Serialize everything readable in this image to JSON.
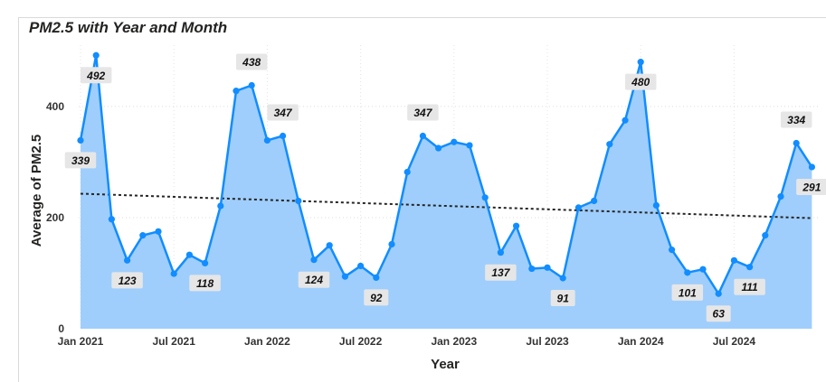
{
  "title": "PM2.5 with Year and Month",
  "chart_data": {
    "type": "area",
    "title": "PM2.5 with Year and Month",
    "xlabel": "Year",
    "ylabel": "Average of PM2.5",
    "x_start": "Jan 2021",
    "x_tick_labels": [
      "Jan 2021",
      "Jul 2021",
      "Jan 2022",
      "Jul 2022",
      "Jan 2023",
      "Jul 2023",
      "Jan 2024",
      "Jul 2024"
    ],
    "x_tick_month_index": [
      0,
      6,
      12,
      18,
      24,
      30,
      36,
      42
    ],
    "y_ticks": [
      0,
      200,
      400
    ],
    "ylim": [
      0,
      500
    ],
    "grid": true,
    "trendline": {
      "style": "dotted",
      "start": 243,
      "end": 199
    },
    "series": [
      {
        "values": [
          339,
          492,
          197,
          123,
          168,
          175,
          99,
          133,
          118,
          221,
          428,
          438,
          339,
          347,
          230,
          124,
          150,
          94,
          113,
          92,
          152,
          282,
          347,
          325,
          336,
          330,
          236,
          137,
          185,
          108,
          110,
          91,
          218,
          230,
          332,
          375,
          480,
          222,
          142,
          101,
          107,
          63,
          123,
          111,
          168,
          238,
          334,
          291
        ],
        "color": "#118dff",
        "fill": "#9fcefc"
      }
    ],
    "data_labels": [
      {
        "index": 0,
        "value": "339",
        "position": "below"
      },
      {
        "index": 1,
        "value": "492",
        "position": "below"
      },
      {
        "index": 3,
        "value": "123",
        "position": "below"
      },
      {
        "index": 8,
        "value": "118",
        "position": "below"
      },
      {
        "index": 11,
        "value": "438",
        "position": "above"
      },
      {
        "index": 13,
        "value": "347",
        "position": "above"
      },
      {
        "index": 15,
        "value": "124",
        "position": "below"
      },
      {
        "index": 19,
        "value": "92",
        "position": "below"
      },
      {
        "index": 22,
        "value": "347",
        "position": "above"
      },
      {
        "index": 27,
        "value": "137",
        "position": "below"
      },
      {
        "index": 31,
        "value": "91",
        "position": "below"
      },
      {
        "index": 36,
        "value": "480",
        "position": "below"
      },
      {
        "index": 39,
        "value": "101",
        "position": "below"
      },
      {
        "index": 41,
        "value": "63",
        "position": "below"
      },
      {
        "index": 43,
        "value": "111",
        "position": "below"
      },
      {
        "index": 46,
        "value": "334",
        "position": "above"
      },
      {
        "index": 47,
        "value": "291",
        "position": "below"
      }
    ]
  }
}
